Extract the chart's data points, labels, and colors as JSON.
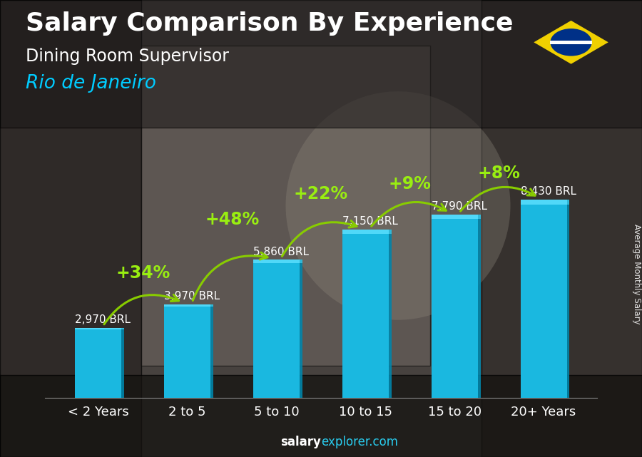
{
  "title": "Salary Comparison By Experience",
  "subtitle": "Dining Room Supervisor",
  "city": "Rio de Janeiro",
  "categories": [
    "< 2 Years",
    "2 to 5",
    "5 to 10",
    "10 to 15",
    "15 to 20",
    "20+ Years"
  ],
  "values": [
    2970,
    3970,
    5860,
    7150,
    7790,
    8430
  ],
  "bar_color": "#1ab8e0",
  "bar_edge_color": "#0090b8",
  "background_color": "#4a4a5a",
  "title_color": "#ffffff",
  "subtitle_color": "#ffffff",
  "city_color": "#00ccff",
  "value_labels": [
    "2,970 BRL",
    "3,970 BRL",
    "5,860 BRL",
    "7,150 BRL",
    "7,790 BRL",
    "8,430 BRL"
  ],
  "pct_labels": [
    "+34%",
    "+48%",
    "+22%",
    "+9%",
    "+8%"
  ],
  "pct_color": "#99ee11",
  "arrow_color": "#88cc00",
  "ylabel": "Average Monthly Salary",
  "footer_salary": "salary",
  "footer_rest": "explorer.com",
  "ylim": [
    0,
    10500
  ],
  "title_fontsize": 26,
  "subtitle_fontsize": 17,
  "city_fontsize": 19,
  "value_fontsize": 11,
  "pct_fontsize": 17,
  "xlabel_fontsize": 13,
  "bar_width": 0.52
}
